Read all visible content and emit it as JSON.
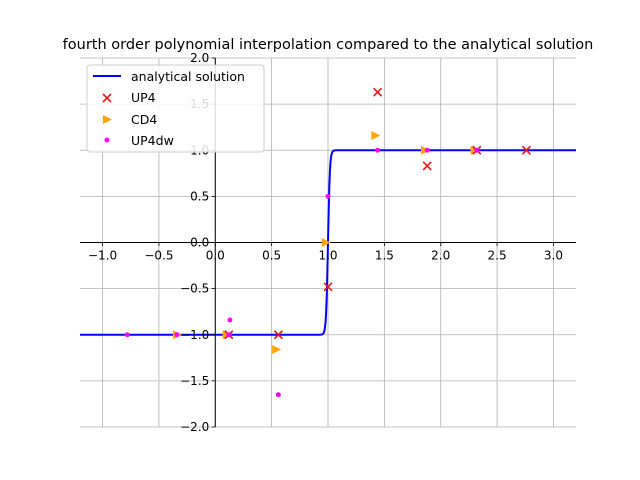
{
  "chart_data": {
    "type": "line",
    "title": "fourth order polynomial interpolation compared to the analytical solution",
    "xlabel": "",
    "ylabel": "",
    "xlim": [
      -1.2,
      3.2
    ],
    "ylim": [
      -2.0,
      2.0
    ],
    "xticks": [
      "−1.0",
      "−0.5",
      "0.0",
      "0.5",
      "1.0",
      "1.5",
      "2.0",
      "2.5",
      "3.0"
    ],
    "xtick_values": [
      -1.0,
      -0.5,
      0.0,
      0.5,
      1.0,
      1.5,
      2.0,
      2.5,
      3.0
    ],
    "yticks": [
      "−2.0",
      "−1.5",
      "−1.0",
      "−0.5",
      "0.0",
      "0.5",
      "1.0",
      "1.5",
      "2.0"
    ],
    "ytick_values": [
      -2.0,
      -1.5,
      -1.0,
      -0.5,
      0.0,
      0.5,
      1.0,
      1.5,
      2.0
    ],
    "grid": true,
    "spines": "centered at origin",
    "legend_position": "top-left",
    "series": [
      {
        "name": "analytical solution",
        "kind": "line",
        "color": "#0000ff",
        "function": "tanh(60*(x-1))",
        "x_range": [
          -1.2,
          3.2
        ]
      },
      {
        "name": "UP4",
        "kind": "scatter",
        "marker": "x",
        "color": "#e31a1c",
        "x": [
          0.12,
          0.56,
          1.0,
          1.44,
          1.88,
          2.32,
          2.76
        ],
        "y": [
          -1.0,
          -1.0,
          -0.48,
          1.63,
          0.83,
          1.0,
          1.0
        ]
      },
      {
        "name": "CD4",
        "kind": "scatter",
        "marker": "triangle-right",
        "color": "#ffa500",
        "x": [
          -0.34,
          0.1,
          0.54,
          0.98,
          1.42,
          1.86,
          2.3
        ],
        "y": [
          -1.0,
          -1.0,
          -1.16,
          0.0,
          1.16,
          1.0,
          1.0
        ]
      },
      {
        "name": "UP4dw",
        "kind": "scatter",
        "marker": "dot",
        "color": "#ff00ff",
        "x": [
          -0.78,
          -0.34,
          0.12,
          0.13,
          0.56,
          1.0,
          1.44,
          1.88,
          2.32
        ],
        "y": [
          -1.0,
          -1.0,
          -1.0,
          -0.84,
          -1.65,
          0.5,
          1.0,
          1.0,
          1.0
        ]
      }
    ]
  }
}
